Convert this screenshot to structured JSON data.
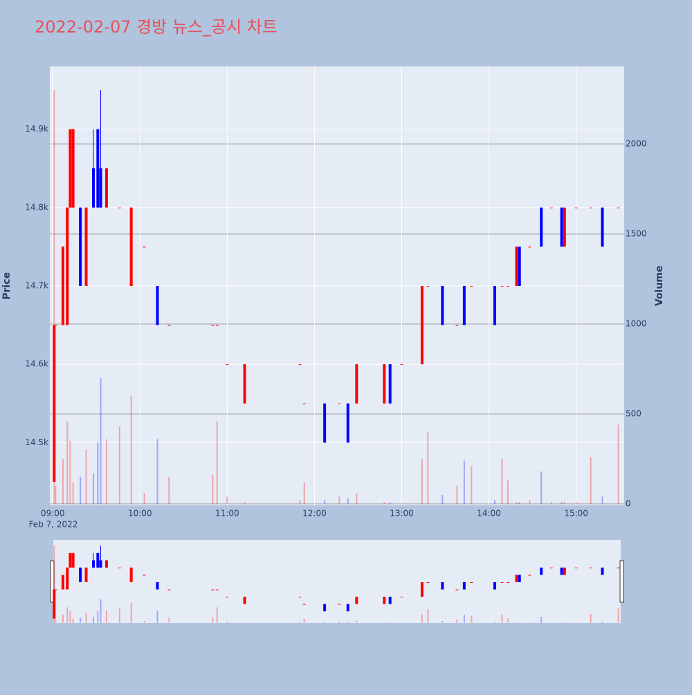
{
  "chart_data": {
    "type": "candlestick",
    "title": "2022-02-07 경방 뉴스_공시 차트",
    "y_label": "Price",
    "y2_label": "Volume",
    "xaxis_date": "Feb 7, 2022",
    "xlim": [
      "08:58",
      "15:33"
    ],
    "xticks": [
      "09:00",
      "10:00",
      "11:00",
      "12:00",
      "13:00",
      "14:00",
      "15:00"
    ],
    "ylim": [
      14420,
      14980
    ],
    "yticks": [
      {
        "value": 14500,
        "label": "14.5k"
      },
      {
        "value": 14600,
        "label": "14.6k"
      },
      {
        "value": 14700,
        "label": "14.7k"
      },
      {
        "value": 14800,
        "label": "14.8k"
      },
      {
        "value": 14900,
        "label": "14.9k"
      }
    ],
    "y2lim": [
      -8,
      2431
    ],
    "y2ticks": [
      0,
      500,
      1000,
      1500,
      2000
    ],
    "increasing_color": "#ff0000",
    "decreasing_color": "#0000ff",
    "x": [
      "09:01",
      "09:02",
      "09:07",
      "09:10",
      "09:12",
      "09:14",
      "09:19",
      "09:23",
      "09:28",
      "09:31",
      "09:33",
      "09:37",
      "09:46",
      "09:54",
      "10:03",
      "10:12",
      "10:20",
      "10:50",
      "10:53",
      "11:00",
      "11:12",
      "11:50",
      "11:53",
      "12:07",
      "12:17",
      "12:23",
      "12:29",
      "12:48",
      "12:52",
      "13:00",
      "13:14",
      "13:18",
      "13:28",
      "13:38",
      "13:43",
      "13:48",
      "14:04",
      "14:09",
      "14:13",
      "14:19",
      "14:21",
      "14:28",
      "14:36",
      "14:43",
      "14:50",
      "14:52",
      "15:00",
      "15:10",
      "15:18",
      "15:29"
    ],
    "open": [
      14450,
      14650,
      14650,
      14650,
      14800,
      14800,
      14800,
      14700,
      14850,
      14900,
      14850,
      14800,
      14800,
      14700,
      14750,
      14700,
      14650,
      14650,
      14650,
      14600,
      14550,
      14600,
      14550,
      14550,
      14550,
      14550,
      14550,
      14550,
      14600,
      14600,
      14600,
      14700,
      14700,
      14650,
      14700,
      14700,
      14700,
      14700,
      14700,
      14700,
      14750,
      14750,
      14800,
      14800,
      14800,
      14750,
      14800,
      14800,
      14800,
      14800
    ],
    "high": [
      14650,
      14650,
      14750,
      14800,
      14900,
      14900,
      14800,
      14800,
      14900,
      14900,
      14950,
      14850,
      14800,
      14800,
      14750,
      14700,
      14650,
      14650,
      14650,
      14600,
      14600,
      14600,
      14550,
      14550,
      14550,
      14550,
      14600,
      14600,
      14600,
      14600,
      14700,
      14700,
      14700,
      14650,
      14700,
      14700,
      14700,
      14700,
      14700,
      14750,
      14750,
      14750,
      14800,
      14800,
      14800,
      14800,
      14800,
      14800,
      14800,
      14800
    ],
    "low": [
      14450,
      14650,
      14650,
      14650,
      14800,
      14800,
      14700,
      14700,
      14800,
      14800,
      14800,
      14800,
      14800,
      14700,
      14750,
      14650,
      14650,
      14650,
      14650,
      14600,
      14550,
      14600,
      14550,
      14500,
      14550,
      14500,
      14550,
      14550,
      14550,
      14600,
      14600,
      14700,
      14650,
      14650,
      14650,
      14700,
      14650,
      14700,
      14700,
      14700,
      14700,
      14750,
      14750,
      14800,
      14750,
      14750,
      14800,
      14800,
      14750,
      14800
    ],
    "close": [
      14650,
      14650,
      14750,
      14800,
      14900,
      14900,
      14700,
      14800,
      14800,
      14800,
      14800,
      14850,
      14800,
      14800,
      14750,
      14650,
      14650,
      14650,
      14650,
      14600,
      14600,
      14600,
      14550,
      14500,
      14550,
      14500,
      14600,
      14600,
      14550,
      14600,
      14700,
      14700,
      14650,
      14650,
      14650,
      14700,
      14650,
      14700,
      14700,
      14750,
      14700,
      14750,
      14750,
      14800,
      14750,
      14800,
      14800,
      14800,
      14750,
      14800
    ],
    "volume": [
      2300,
      100,
      250,
      460,
      350,
      120,
      150,
      300,
      170,
      340,
      700,
      360,
      430,
      600,
      60,
      360,
      150,
      160,
      460,
      40,
      10,
      20,
      120,
      20,
      40,
      30,
      60,
      10,
      10,
      5,
      250,
      400,
      50,
      100,
      240,
      210,
      20,
      250,
      130,
      10,
      10,
      20,
      180,
      10,
      10,
      10,
      10,
      260,
      40,
      440
    ]
  }
}
